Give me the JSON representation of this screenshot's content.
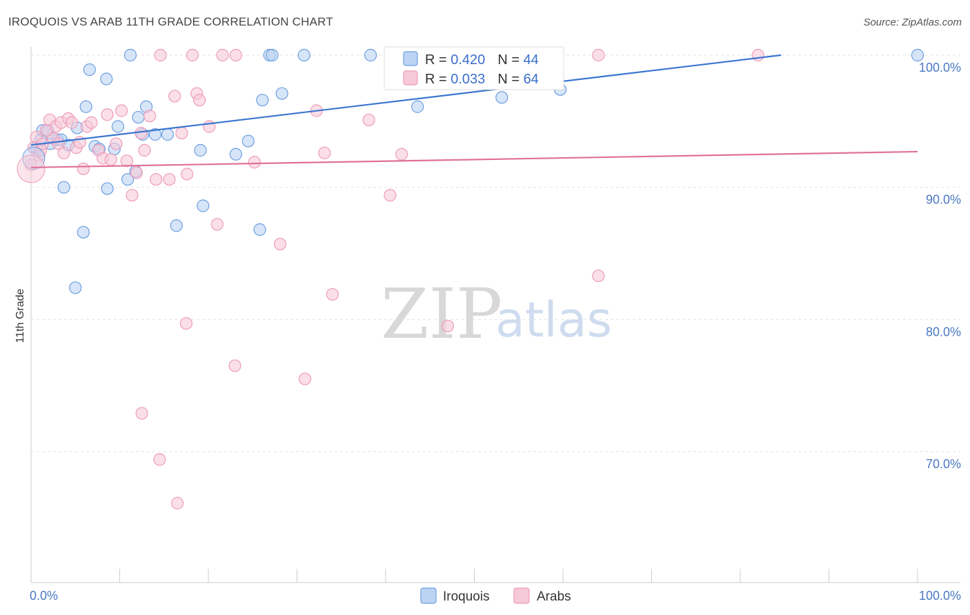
{
  "header": {
    "title": "IROQUOIS VS ARAB 11TH GRADE CORRELATION CHART",
    "source": "Source: ZipAtlas.com"
  },
  "legend": {
    "rows": [
      {
        "r_label": "R = ",
        "r_value": "0.420",
        "n_label": "N = ",
        "n_value": "44"
      },
      {
        "r_label": "R = ",
        "r_value": "0.033",
        "n_label": "N = ",
        "n_value": "64"
      }
    ]
  },
  "watermark": {
    "zip": "ZIP",
    "atlas": "atlas"
  },
  "chart_data": {
    "type": "scatter",
    "ylabel": "11th Grade",
    "xlim": [
      0,
      100
    ],
    "ylim": [
      60,
      100
    ],
    "x_tick_labels": [
      "0.0%",
      "100.0%"
    ],
    "y_ticks": [
      {
        "value": 100,
        "label": "100.0%"
      },
      {
        "value": 90,
        "label": "90.0%"
      },
      {
        "value": 80,
        "label": "80.0%"
      },
      {
        "value": 70,
        "label": "70.0%"
      }
    ],
    "grid": true,
    "legend_position": "top-center",
    "series": [
      {
        "name": "Iroquois",
        "color": "#6b9ee0",
        "line_color": "#3a75d0",
        "trend": [
          [
            0,
            93.2
          ],
          [
            84.6,
            100
          ]
        ],
        "points": [
          [
            0.6,
            93.0
          ],
          [
            1.1,
            93.6
          ],
          [
            1.3,
            94.3
          ],
          [
            1.9,
            94.3
          ],
          [
            2.2,
            93.3
          ],
          [
            3.0,
            93.6
          ],
          [
            3.4,
            93.6
          ],
          [
            3.7,
            90.0
          ],
          [
            4.2,
            93.2
          ],
          [
            5.2,
            94.5
          ],
          [
            6.2,
            96.1
          ],
          [
            6.6,
            98.9
          ],
          [
            7.2,
            93.1
          ],
          [
            7.7,
            92.9
          ],
          [
            8.5,
            98.2
          ],
          [
            8.6,
            89.9
          ],
          [
            9.4,
            92.9
          ],
          [
            9.8,
            94.6
          ],
          [
            10.9,
            90.6
          ],
          [
            11.2,
            100
          ],
          [
            11.8,
            91.2
          ],
          [
            12.1,
            95.3
          ],
          [
            12.6,
            94.0
          ],
          [
            13.0,
            96.1
          ],
          [
            14.0,
            94.0
          ],
          [
            15.4,
            94.0
          ],
          [
            16.4,
            87.1
          ],
          [
            19.1,
            92.8
          ],
          [
            19.4,
            88.6
          ],
          [
            23.1,
            92.5
          ],
          [
            24.5,
            93.5
          ],
          [
            25.8,
            86.8
          ],
          [
            26.1,
            96.6
          ],
          [
            26.9,
            100
          ],
          [
            27.2,
            100
          ],
          [
            28.3,
            97.1
          ],
          [
            30.8,
            100
          ],
          [
            38.3,
            100
          ],
          [
            43.6,
            96.1
          ],
          [
            53.1,
            96.8
          ],
          [
            59.7,
            97.4
          ],
          [
            100,
            100
          ],
          [
            5.0,
            82.4
          ],
          [
            5.9,
            86.6
          ]
        ]
      },
      {
        "name": "Arabs",
        "color": "#ee9bb8",
        "line_color": "#e0709a",
        "trend": [
          [
            0,
            91.5
          ],
          [
            100,
            92.7
          ]
        ],
        "points": [
          [
            0.0,
            91.7
          ],
          [
            0.3,
            93.0
          ],
          [
            0.6,
            93.8
          ],
          [
            0.9,
            92.4
          ],
          [
            1.1,
            92.8
          ],
          [
            1.3,
            93.3
          ],
          [
            1.7,
            94.3
          ],
          [
            2.1,
            95.1
          ],
          [
            2.5,
            93.7
          ],
          [
            2.8,
            94.6
          ],
          [
            3.1,
            93.3
          ],
          [
            3.4,
            94.9
          ],
          [
            3.7,
            92.6
          ],
          [
            4.2,
            95.2
          ],
          [
            4.6,
            94.9
          ],
          [
            5.1,
            93.0
          ],
          [
            5.5,
            93.4
          ],
          [
            5.9,
            91.4
          ],
          [
            6.3,
            94.6
          ],
          [
            6.8,
            94.9
          ],
          [
            7.6,
            92.8
          ],
          [
            8.1,
            92.2
          ],
          [
            8.6,
            95.5
          ],
          [
            9.0,
            92.1
          ],
          [
            9.6,
            93.3
          ],
          [
            10.2,
            95.8
          ],
          [
            10.8,
            92.0
          ],
          [
            11.4,
            89.4
          ],
          [
            11.9,
            91.1
          ],
          [
            12.4,
            94.1
          ],
          [
            12.8,
            92.8
          ],
          [
            13.4,
            95.4
          ],
          [
            14.1,
            90.6
          ],
          [
            14.6,
            100
          ],
          [
            15.6,
            90.6
          ],
          [
            16.2,
            96.9
          ],
          [
            17.0,
            94.1
          ],
          [
            17.6,
            91.0
          ],
          [
            18.2,
            100
          ],
          [
            18.7,
            97.1
          ],
          [
            19.0,
            96.6
          ],
          [
            20.1,
            94.6
          ],
          [
            21.0,
            87.2
          ],
          [
            21.6,
            100
          ],
          [
            23.1,
            100
          ],
          [
            25.2,
            91.9
          ],
          [
            28.1,
            85.7
          ],
          [
            30.9,
            75.5
          ],
          [
            32.2,
            95.8
          ],
          [
            33.1,
            92.6
          ],
          [
            34.0,
            81.9
          ],
          [
            38.1,
            95.1
          ],
          [
            40.5,
            89.4
          ],
          [
            41.8,
            92.5
          ],
          [
            47.0,
            79.5
          ],
          [
            47.3,
            100
          ],
          [
            64.0,
            100
          ],
          [
            64.0,
            83.3
          ],
          [
            82.0,
            100
          ],
          [
            23.0,
            76.5
          ],
          [
            12.5,
            72.9
          ],
          [
            14.5,
            69.4
          ],
          [
            16.5,
            66.1
          ],
          [
            17.5,
            79.7
          ]
        ]
      }
    ]
  }
}
